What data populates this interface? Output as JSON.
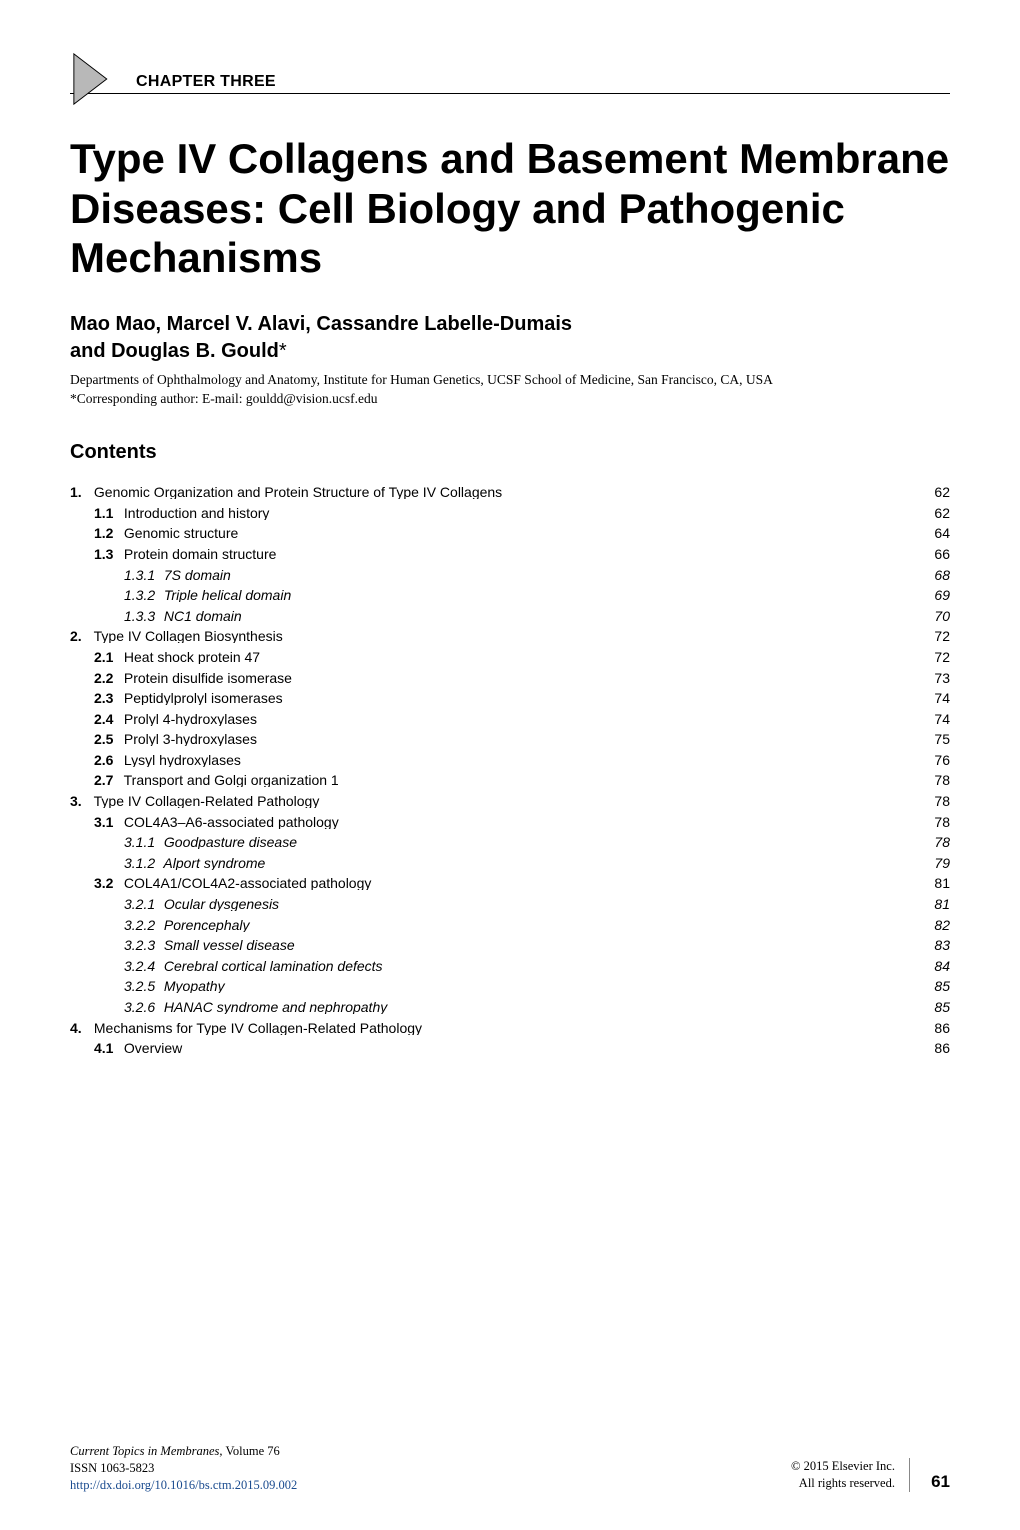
{
  "chapter_label": "CHAPTER THREE",
  "title": "Type IV Collagens and Basement Membrane Diseases: Cell Biology and Pathogenic Mechanisms",
  "authors_line1": "Mao Mao, Marcel V. Alavi, Cassandre Labelle-Dumais",
  "authors_line2_pre": "and Douglas B. Gould",
  "authors_star": "*",
  "affiliation": "Departments of Ophthalmology and Anatomy, Institute for Human Genetics, UCSF School of Medicine, San Francisco, CA, USA",
  "corresponding": "*Corresponding author: E-mail: gouldd@vision.ucsf.edu",
  "contents_heading": "Contents",
  "toc": [
    {
      "level": 1,
      "num": "1.",
      "text": "Genomic Organization and Protein Structure of Type IV Collagens",
      "page": "62"
    },
    {
      "level": 2,
      "num": "1.1",
      "text": "Introduction and history",
      "page": "62"
    },
    {
      "level": 2,
      "num": "1.2",
      "text": "Genomic structure",
      "page": "64"
    },
    {
      "level": 2,
      "num": "1.3",
      "text": "Protein domain structure",
      "page": "66"
    },
    {
      "level": 3,
      "num": "1.3.1",
      "text": "7S domain",
      "page": "68"
    },
    {
      "level": 3,
      "num": "1.3.2",
      "text": "Triple helical domain",
      "page": "69"
    },
    {
      "level": 3,
      "num": "1.3.3",
      "text": "NC1 domain",
      "page": "70"
    },
    {
      "level": 1,
      "num": "2.",
      "text": "Type IV Collagen Biosynthesis",
      "page": "72"
    },
    {
      "level": 2,
      "num": "2.1",
      "text": "Heat shock protein 47",
      "page": "72"
    },
    {
      "level": 2,
      "num": "2.2",
      "text": "Protein disulfide isomerase",
      "page": "73"
    },
    {
      "level": 2,
      "num": "2.3",
      "text": "Peptidylprolyl isomerases",
      "page": "74"
    },
    {
      "level": 2,
      "num": "2.4",
      "text": "Prolyl 4-hydroxylases",
      "page": "74"
    },
    {
      "level": 2,
      "num": "2.5",
      "text": "Prolyl 3-hydroxylases",
      "page": "75"
    },
    {
      "level": 2,
      "num": "2.6",
      "text": "Lysyl hydroxylases",
      "page": "76"
    },
    {
      "level": 2,
      "num": "2.7",
      "text": "Transport and Golgi organization 1",
      "page": "78"
    },
    {
      "level": 1,
      "num": "3.",
      "text": "Type IV Collagen-Related Pathology",
      "page": "78"
    },
    {
      "level": 2,
      "num": "3.1",
      "text": "COL4A3–A6-associated pathology",
      "page": "78"
    },
    {
      "level": 3,
      "num": "3.1.1",
      "text": "Goodpasture disease",
      "page": "78"
    },
    {
      "level": 3,
      "num": "3.1.2",
      "text": "Alport syndrome",
      "page": "79"
    },
    {
      "level": 2,
      "num": "3.2",
      "text": "COL4A1/COL4A2-associated pathology",
      "page": "81"
    },
    {
      "level": 3,
      "num": "3.2.1",
      "text": "Ocular dysgenesis",
      "page": "81"
    },
    {
      "level": 3,
      "num": "3.2.2",
      "text": "Porencephaly",
      "page": "82"
    },
    {
      "level": 3,
      "num": "3.2.3",
      "text": "Small vessel disease",
      "page": "83"
    },
    {
      "level": 3,
      "num": "3.2.4",
      "text": "Cerebral cortical lamination defects",
      "page": "84"
    },
    {
      "level": 3,
      "num": "3.2.5",
      "text": "Myopathy",
      "page": "85"
    },
    {
      "level": 3,
      "num": "3.2.6",
      "text": "HANAC syndrome and nephropathy",
      "page": "85"
    },
    {
      "level": 1,
      "num": "4.",
      "text": "Mechanisms for Type IV Collagen-Related Pathology",
      "page": "86"
    },
    {
      "level": 2,
      "num": "4.1",
      "text": "Overview",
      "page": "86"
    }
  ],
  "footer": {
    "series_title": "Current Topics in Membranes,",
    "volume": " Volume 76",
    "issn": "ISSN 1063-5823",
    "doi": "http://dx.doi.org/10.1016/bs.ctm.2015.09.002",
    "copyright": "© 2015 Elsevier Inc.",
    "rights": "All rights reserved.",
    "page": "61"
  },
  "colors": {
    "text": "#000000",
    "chevron_stroke": "#000000",
    "chevron_fill": "#a9a9a9",
    "doi_link": "#1a4b8f",
    "background": "#ffffff"
  }
}
